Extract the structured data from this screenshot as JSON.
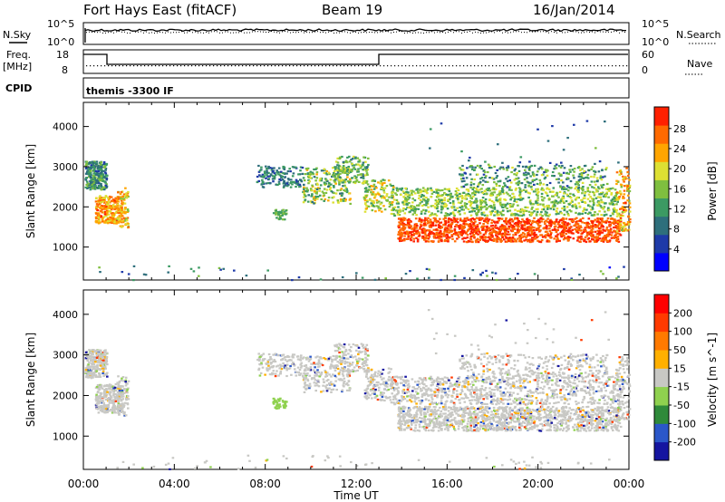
{
  "header": {
    "station": "Fort Hays East (fitACF)",
    "beam": "Beam 19",
    "date": "16/Jan/2014"
  },
  "top_panels": {
    "nsky_label": "N.Sky",
    "nsky_ticks": [
      "10^5",
      "10^0"
    ],
    "nsearch_label": "N.Search",
    "nsearch_ticks": [
      "10^5",
      "10^0"
    ],
    "freq_label": "Freq.",
    "freq_unit": "[MHz]",
    "freq_ticks": [
      "18",
      "8"
    ],
    "nave_label": "Nave",
    "nave_ticks": [
      "60",
      "0"
    ],
    "cpid_label": "CPID",
    "cpid_value": "themis -3300 IF"
  },
  "chart_data": [
    {
      "type": "heatmap",
      "name": "power",
      "ylabel": "Slant Range [km]",
      "xlabel": "Time UT",
      "yticks": [
        1000,
        2000,
        3000,
        4000
      ],
      "ylim": [
        180,
        4600
      ],
      "xticks": [
        "00:00",
        "04:00",
        "08:00",
        "12:00",
        "16:00",
        "20:00",
        "00:00"
      ],
      "xlim_hours": [
        0,
        24
      ],
      "colorbar": {
        "label": "Power [dB]",
        "ticks": [
          "4",
          "8",
          "12",
          "16",
          "20",
          "24",
          "28"
        ],
        "colors": [
          "#0000ff",
          "#1e3aa8",
          "#2e6f7c",
          "#3c9a63",
          "#7fbf3f",
          "#dde033",
          "#ffa500",
          "#ff6a00",
          "#ff2000"
        ]
      }
    },
    {
      "type": "heatmap",
      "name": "velocity",
      "ylabel": "Slant Range [km]",
      "xlabel": "Time UT",
      "yticks": [
        1000,
        2000,
        3000,
        4000
      ],
      "ylim": [
        180,
        4600
      ],
      "xticks": [
        "00:00",
        "04:00",
        "08:00",
        "12:00",
        "16:00",
        "20:00",
        "00:00"
      ],
      "xlim_hours": [
        0,
        24
      ],
      "colorbar": {
        "label": "Velocity [m s^-1]",
        "ticks": [
          "200",
          "100",
          "50",
          "15",
          "-15",
          "-50",
          "-100",
          "-200"
        ],
        "colors": [
          "#1515a0",
          "#2b57c9",
          "#2f8a3a",
          "#8fd14f",
          "#c8c8c4",
          "#ffb000",
          "#ff7a00",
          "#ff3a00",
          "#ff0000"
        ]
      }
    }
  ],
  "xaxis": {
    "title": "Time UT",
    "ticks": [
      "00:00",
      "04:00",
      "08:00",
      "12:00",
      "16:00",
      "20:00",
      "00:00"
    ]
  }
}
